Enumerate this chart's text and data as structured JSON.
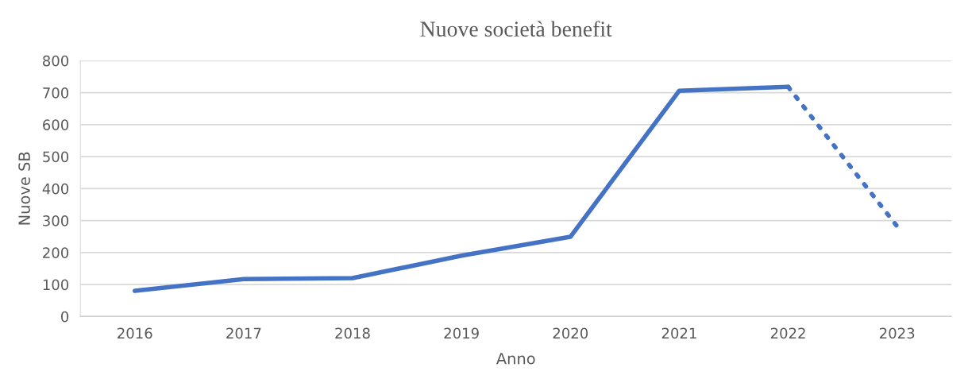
{
  "chart_data": {
    "type": "line",
    "title": "Nuove società benefit",
    "xlabel": "Anno",
    "ylabel": "Nuove SB",
    "categories": [
      "2016",
      "2017",
      "2018",
      "2019",
      "2020",
      "2021",
      "2022",
      "2023"
    ],
    "series": [
      {
        "color": "#4472c4",
        "line_style": "solid",
        "values": [
          80,
          117,
          120,
          190,
          249,
          706,
          718,
          null
        ]
      },
      {
        "color": "#4472c4",
        "line_style": "dotted",
        "values": [
          null,
          null,
          null,
          null,
          null,
          null,
          718,
          282
        ]
      }
    ],
    "ylim": [
      0,
      800
    ],
    "yticks": [
      0,
      100,
      200,
      300,
      400,
      500,
      600,
      700,
      800
    ],
    "grid": "y",
    "legend": false,
    "marker": "none"
  }
}
